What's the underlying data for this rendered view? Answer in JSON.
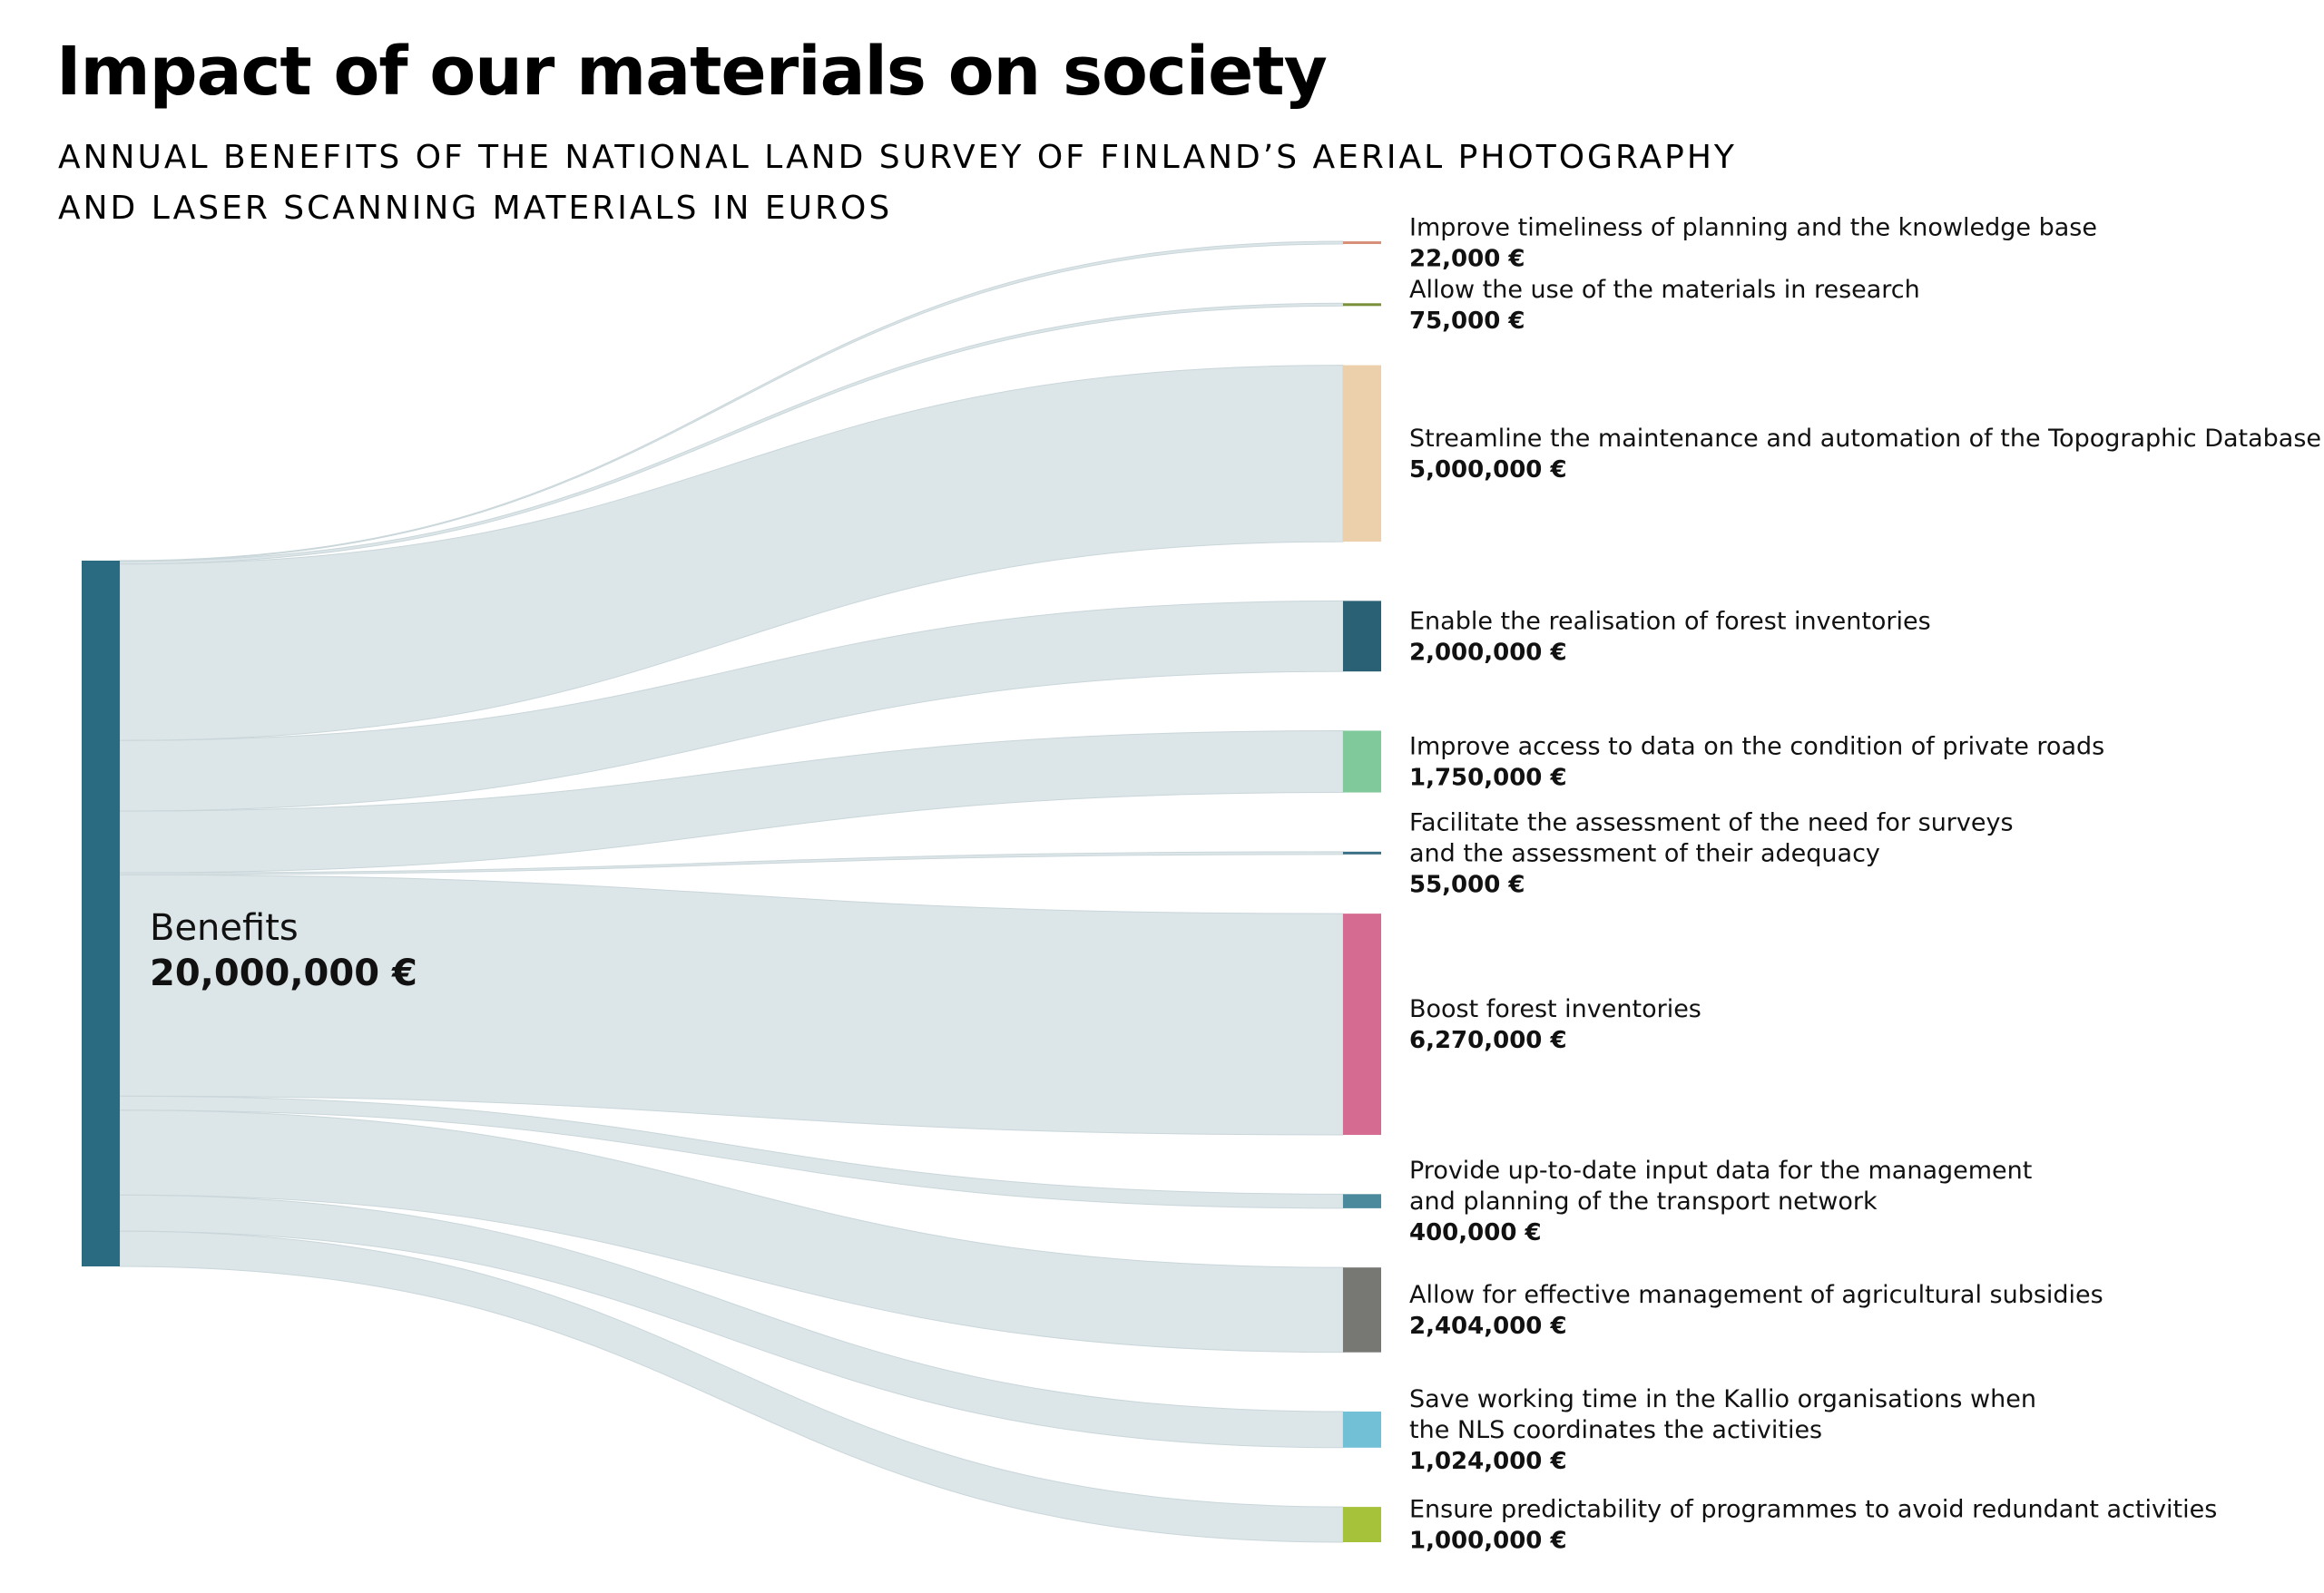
{
  "header": {
    "title": "Impact of our materials on society",
    "subtitle_line1": "ANNUAL BENEFITS OF THE NATIONAL LAND SURVEY OF FINLAND’S AERIAL PHOTOGRAPHY",
    "subtitle_line2": "AND LASER SCANNING MATERIALS IN EUROS"
  },
  "chart_data": {
    "type": "sankey",
    "title": "Impact of our materials on society",
    "subtitle": "ANNUAL BENEFITS OF THE NATIONAL LAND SURVEY OF FINLAND’S AERIAL PHOTOGRAPHY AND LASER SCANNING MATERIALS IN EUROS",
    "source": {
      "name": "Benefits",
      "value": 20000000,
      "value_label": "20,000,000 €",
      "color": "#2b6b82"
    },
    "link_color": "#dce5e8",
    "targets": [
      {
        "lines": [
          "Improve timeliness of planning and the knowledge base"
        ],
        "value": 22000,
        "value_label": "22,000 €",
        "color": "#d9907a"
      },
      {
        "lines": [
          "Allow the use of the materials in research"
        ],
        "value": 75000,
        "value_label": "75,000 €",
        "color": "#7a8f3a"
      },
      {
        "lines": [
          "Streamline the maintenance and automation of the Topographic Database"
        ],
        "value": 5000000,
        "value_label": "5,000,000 €",
        "color": "#eccfab"
      },
      {
        "lines": [
          "Enable the realisation of forest inventories"
        ],
        "value": 2000000,
        "value_label": "2,000,000 €",
        "color": "#2a6175"
      },
      {
        "lines": [
          "Improve access to data on the condition of private roads"
        ],
        "value": 1750000,
        "value_label": "1,750,000 €",
        "color": "#7fc99a"
      },
      {
        "lines": [
          "Facilitate the assessment of the need for surveys",
          "and the assessment of their adequacy"
        ],
        "value": 55000,
        "value_label": "55,000 €",
        "color": "#3b6f86"
      },
      {
        "lines": [
          "Boost forest inventories"
        ],
        "value": 6270000,
        "value_label": "6,270,000 €",
        "color": "#d56b90"
      },
      {
        "lines": [
          "Provide up-to-date input data for the management",
          "and planning of the transport network"
        ],
        "value": 400000,
        "value_label": "400,000 €",
        "color": "#4b8a9c"
      },
      {
        "lines": [
          "Allow for effective management of agricultural subsidies"
        ],
        "value": 2404000,
        "value_label": "2,404,000 €",
        "color": "#777873"
      },
      {
        "lines": [
          "Save working time in the Kallio organisations when",
          "the NLS coordinates the activities"
        ],
        "value": 1024000,
        "value_label": "1,024,000 €",
        "color": "#72c0d6"
      },
      {
        "lines": [
          "Ensure predictability of programmes to avoid redundant activities"
        ],
        "value": 1000000,
        "value_label": "1,000,000 €",
        "color": "#a5c23a"
      }
    ]
  }
}
